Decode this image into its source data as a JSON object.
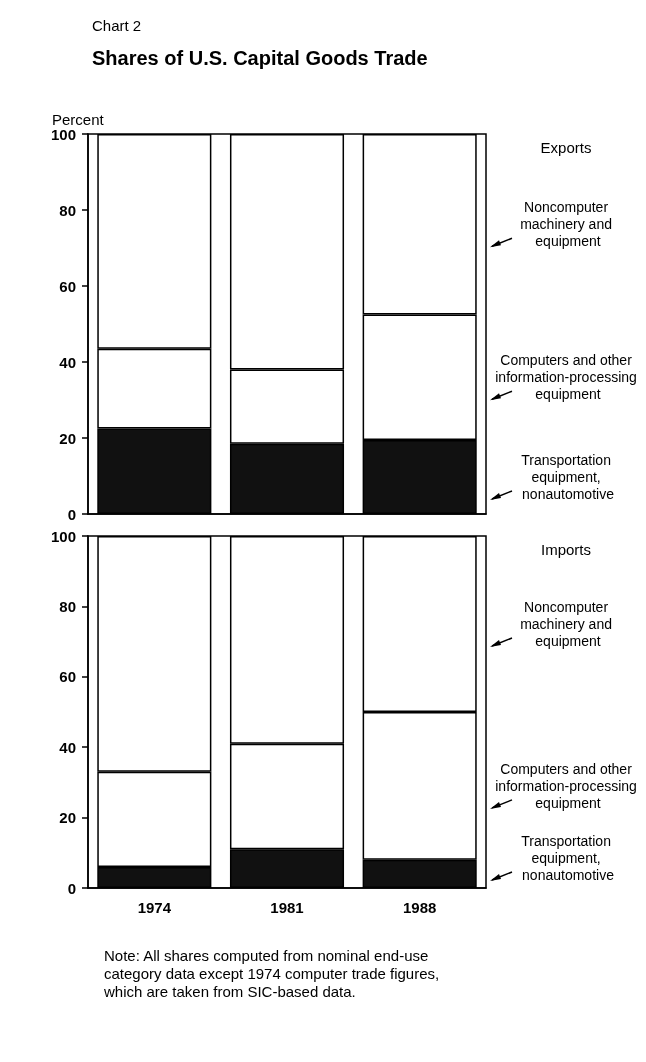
{
  "chart_data": [
    {
      "type": "bar",
      "title": "Shares of U.S. Capital Goods Trade",
      "ylabel": "Percent",
      "annotations": [
        "Chart 2",
        "Exports"
      ],
      "categories": [
        "1974",
        "1981",
        "1988"
      ],
      "stacked": true,
      "tick_labels": "y",
      "ylim": [
        0,
        100
      ],
      "yticks": [
        0,
        20,
        40,
        60,
        80,
        100
      ],
      "series": [
        {
          "name": "Transportation equipment, nonautomotive",
          "color": "#111111",
          "values": [
            22.5,
            18.5,
            19.5
          ]
        },
        {
          "name": "Computers and other information-processing equipment",
          "color": "#ffffff",
          "values": [
            21,
            19.5,
            33
          ]
        },
        {
          "name": "Noncomputer machinery and equipment",
          "color": "#ffffff",
          "values": [
            56.5,
            62,
            47.5
          ]
        }
      ]
    },
    {
      "type": "bar",
      "annotations": [
        "Imports",
        "Note: All shares computed from nominal end-use category data except 1974 computer trade figures, which are taken from SIC-based data."
      ],
      "categories": [
        "1974",
        "1981",
        "1988"
      ],
      "stacked": true,
      "ylim": [
        0,
        100
      ],
      "yticks": [
        0,
        20,
        40,
        60,
        80,
        100
      ],
      "series": [
        {
          "name": "Transportation equipment, nonautomotive",
          "color": "#111111",
          "values": [
            6,
            11,
            8
          ]
        },
        {
          "name": "Computers and other information-processing equipment",
          "color": "#ffffff",
          "values": [
            27,
            30,
            42
          ]
        },
        {
          "name": "Noncomputer machinery and equipment",
          "color": "#ffffff",
          "values": [
            67,
            59,
            50
          ]
        }
      ]
    }
  ]
}
